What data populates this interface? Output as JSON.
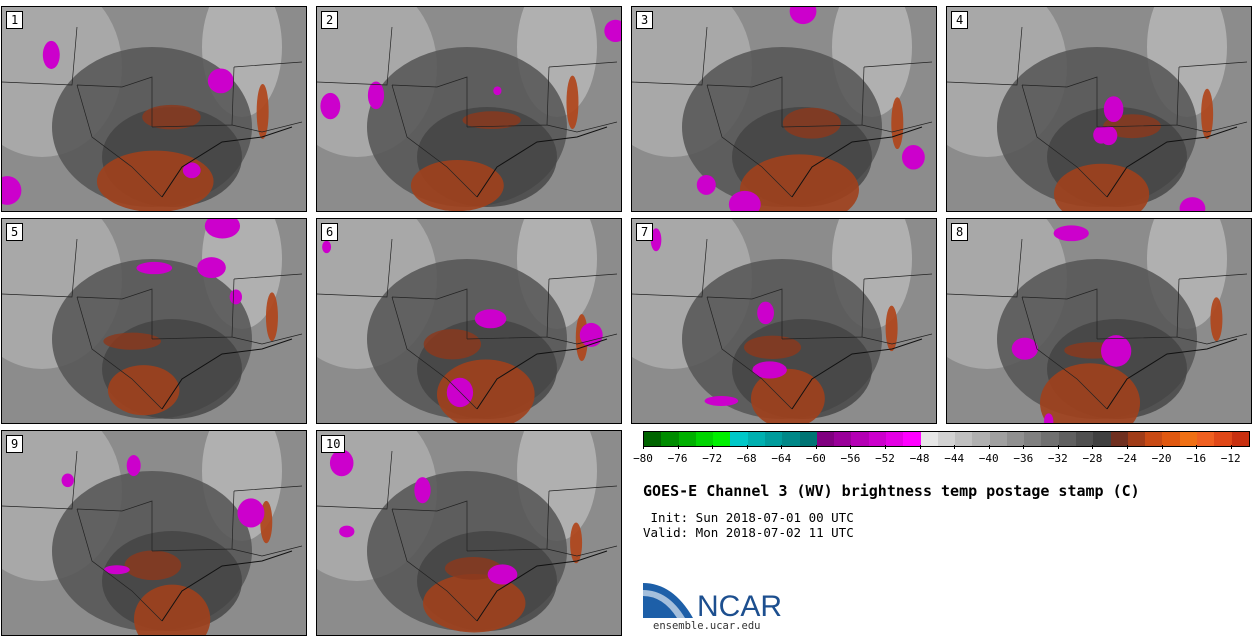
{
  "panels": [
    "1",
    "2",
    "3",
    "4",
    "5",
    "6",
    "7",
    "8",
    "9",
    "10"
  ],
  "colorbar": {
    "ticks": [
      "−80",
      "−76",
      "−72",
      "−68",
      "−64",
      "−60",
      "−56",
      "−52",
      "−48",
      "−44",
      "−40",
      "−36",
      "−32",
      "−28",
      "−24",
      "−20",
      "−16",
      "−12"
    ],
    "colors": [
      "#006400",
      "#008c00",
      "#00b000",
      "#00d400",
      "#00f000",
      "#00c8c8",
      "#00b0b0",
      "#009c9c",
      "#008888",
      "#007474",
      "#800080",
      "#9a009a",
      "#b400b4",
      "#cc00cc",
      "#e400e4",
      "#ff00ff",
      "#e6e6e6",
      "#d2d2d2",
      "#c0c0c0",
      "#b0b0b0",
      "#a0a0a0",
      "#909090",
      "#808080",
      "#707070",
      "#606060",
      "#505050",
      "#404040",
      "#703020",
      "#a03c18",
      "#c84a14",
      "#e05810",
      "#f07014",
      "#f06020",
      "#e04818",
      "#c83010"
    ]
  },
  "title": "GOES-E Channel 3 (WV) brightness temp postage stamp (C)",
  "init": " Init: Sun 2018-07-01 00 UTC",
  "valid": "Valid: Mon 2018-07-02 11 UTC",
  "logo": {
    "text": "NCAR",
    "url": "ensemble.ucar.edu"
  }
}
